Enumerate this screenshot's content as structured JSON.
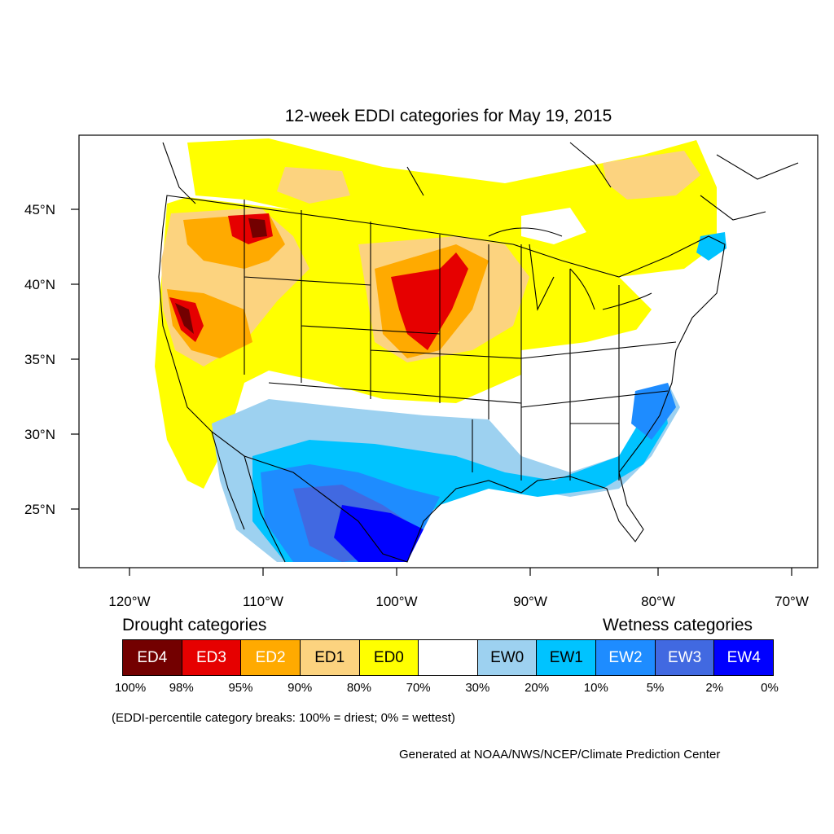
{
  "title": "12-week EDDI categories for May 19, 2015",
  "axes": {
    "lat_ticks": [
      "45°N",
      "40°N",
      "35°N",
      "30°N",
      "25°N"
    ],
    "lon_ticks": [
      "120°W",
      "110°W",
      "100°W",
      "90°W",
      "80°W",
      "70°W"
    ]
  },
  "legend": {
    "drought_heading": "Drought categories",
    "wetness_heading": "Wetness categories",
    "categories": [
      {
        "label": "ED4",
        "color": "#730000",
        "text_color": "#ffffff"
      },
      {
        "label": "ED3",
        "color": "#e60000",
        "text_color": "#ffffff"
      },
      {
        "label": "ED2",
        "color": "#ffaa00",
        "text_color": "#ffffff"
      },
      {
        "label": "ED1",
        "color": "#fcd37f",
        "text_color": "#000000"
      },
      {
        "label": "ED0",
        "color": "#ffff00",
        "text_color": "#000000"
      },
      {
        "label": "",
        "color": "#ffffff",
        "text_color": "#000000"
      },
      {
        "label": "EW0",
        "color": "#9dd1f0",
        "text_color": "#000000"
      },
      {
        "label": "EW1",
        "color": "#00c3ff",
        "text_color": "#000000"
      },
      {
        "label": "EW2",
        "color": "#1e8cff",
        "text_color": "#ffffff"
      },
      {
        "label": "EW3",
        "color": "#4169e1",
        "text_color": "#ffffff"
      },
      {
        "label": "EW4",
        "color": "#0000ff",
        "text_color": "#ffffff"
      }
    ],
    "breaks": [
      "100%",
      "98%",
      "95%",
      "90%",
      "80%",
      "70%",
      "30%",
      "20%",
      "10%",
      "5%",
      "2%",
      "0%"
    ]
  },
  "note": "(EDDI-percentile category breaks: 100% = driest; 0% = wettest)",
  "credit": "Generated at NOAA/NWS/NCEP/Climate Prediction Center"
}
